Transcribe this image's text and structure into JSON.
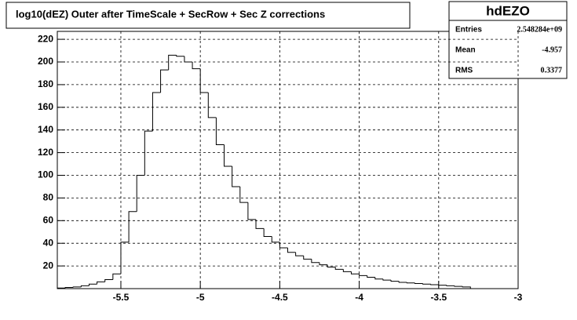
{
  "chart_data": {
    "type": "histogram",
    "title": "log10(dEZ) Outer after TimeScale + SecRow + Sec Z corrections",
    "stats": {
      "name": "hdEZO",
      "rows": [
        [
          "Entries",
          "2.548284e+09"
        ],
        [
          "Mean",
          "-4.957"
        ],
        [
          "RMS",
          "0.3377"
        ]
      ]
    },
    "bins": [
      -5.9,
      -5.85,
      -5.8,
      -5.75,
      -5.7,
      -5.65,
      -5.6,
      -5.55,
      -5.5,
      -5.45,
      -5.4,
      -5.35,
      -5.3,
      -5.25,
      -5.2,
      -5.15,
      -5.1,
      -5.05,
      -5,
      -4.95,
      -4.9,
      -4.85,
      -4.8,
      -4.75,
      -4.7,
      -4.65,
      -4.6,
      -4.55,
      -4.5,
      -4.45,
      -4.4,
      -4.35,
      -4.3,
      -4.25,
      -4.2,
      -4.15,
      -4.1,
      -4.05,
      -4,
      -3.95,
      -3.9,
      -3.85,
      -3.8,
      -3.75,
      -3.7,
      -3.65,
      -3.6,
      -3.55,
      -3.5,
      -3.45,
      -3.4,
      -3.35,
      -3.3
    ],
    "values": [
      0.5,
      1,
      1.5,
      2.5,
      4,
      6,
      8,
      13,
      41,
      68,
      100,
      139,
      173,
      193,
      206,
      205,
      200,
      194,
      173,
      151,
      127,
      108,
      90,
      76,
      61,
      53,
      46,
      41,
      36,
      32,
      29,
      26,
      23,
      21,
      19,
      17,
      15,
      13,
      11.5,
      10,
      8.5,
      7.5,
      6.5,
      5.5,
      5,
      4.5,
      4,
      3.5,
      3,
      2.5,
      2,
      1.5
    ],
    "color": "#000000",
    "xlim": [
      -5.9,
      -3
    ],
    "xticks": [
      -5.5,
      -5,
      -4.5,
      -4,
      -3.5,
      -3
    ],
    "ylim": [
      0,
      227
    ],
    "yticks": [
      20,
      40,
      60,
      80,
      100,
      120,
      140,
      160,
      180,
      200,
      220
    ],
    "grid": true
  }
}
